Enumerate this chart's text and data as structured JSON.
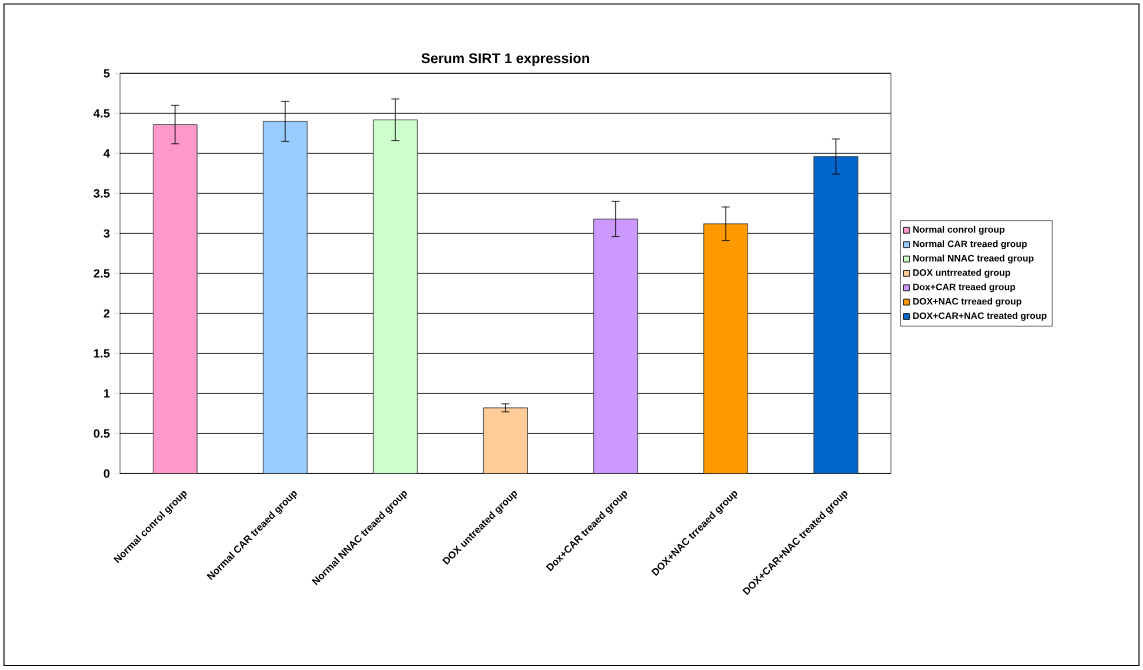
{
  "chart_data": {
    "type": "bar",
    "title": "Serum SIRT 1 expression",
    "categories": [
      "Normal conrol group",
      "Normal CAR treaed group",
      "Normal NNAC treaed group",
      "DOX untreated group",
      "Dox+CAR treaed  group",
      "DOX+NAC trreaed group",
      "DOX+CAR+NAC treated group"
    ],
    "series": [
      {
        "name": "Normal conrol group",
        "color": "#ff99cc",
        "values": [
          4.36,
          null,
          null,
          null,
          null,
          null,
          null
        ],
        "errors": [
          0.24,
          null,
          null,
          null,
          null,
          null,
          null
        ]
      },
      {
        "name": "Normal CAR treaed group",
        "color": "#99ccff",
        "values": [
          null,
          4.4,
          null,
          null,
          null,
          null,
          null
        ],
        "errors": [
          null,
          0.25,
          null,
          null,
          null,
          null,
          null
        ]
      },
      {
        "name": "Normal NNAC treaed group",
        "color": "#ccffcc",
        "values": [
          null,
          null,
          4.42,
          null,
          null,
          null,
          null
        ],
        "errors": [
          null,
          null,
          0.26,
          null,
          null,
          null,
          null
        ]
      },
      {
        "name": "DOX untrreated group",
        "color": "#ffcc99",
        "values": [
          null,
          null,
          null,
          0.82,
          null,
          null,
          null
        ],
        "errors": [
          null,
          null,
          null,
          0.05,
          null,
          null,
          null
        ]
      },
      {
        "name": "Dox+CAR treaed  group",
        "color": "#cc99ff",
        "values": [
          null,
          null,
          null,
          null,
          3.18,
          null,
          null
        ],
        "errors": [
          null,
          null,
          null,
          null,
          0.22,
          null,
          null
        ]
      },
      {
        "name": "DOX+NAC trreaed group",
        "color": "#ff9900",
        "values": [
          null,
          null,
          null,
          null,
          null,
          3.12,
          null
        ],
        "errors": [
          null,
          null,
          null,
          null,
          null,
          0.21,
          null
        ]
      },
      {
        "name": "DOX+CAR+NAC treated group",
        "color": "#0066cc",
        "values": [
          null,
          null,
          null,
          null,
          null,
          null,
          3.96
        ],
        "errors": [
          null,
          null,
          null,
          null,
          null,
          null,
          0.22
        ]
      }
    ],
    "ylim": [
      0,
      5
    ],
    "yticks": [
      0,
      0.5,
      1,
      1.5,
      2,
      2.5,
      3,
      3.5,
      4,
      4.5,
      5
    ],
    "grid": "y",
    "legend": "right"
  }
}
